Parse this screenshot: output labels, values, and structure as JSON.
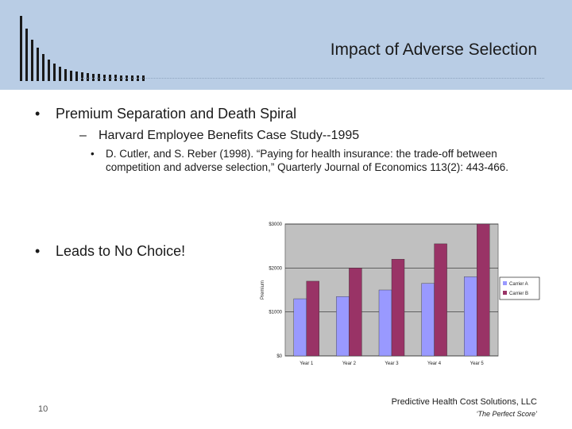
{
  "slide": {
    "title": "Impact of Adverse Selection",
    "bullet1": "Premium Separation and Death Spiral",
    "bullet1_sub": "Harvard Employee Benefits Case Study--1995",
    "citation": "D. Cutler, and S. Reber (1998). “Paying for health insurance: the trade-off between competition and adverse selection,” Quarterly Journal of Economics 113(2): 443-466.",
    "bullet2": "Leads to No Choice!",
    "page_number": "10",
    "company": "Predictive Health Cost Solutions, LLC",
    "tagline": "‘The Perfect Score’",
    "bullet_glyph": "•",
    "dash_glyph": "–"
  },
  "chart_data": {
    "type": "bar",
    "categories": [
      "Year 1",
      "Year 2",
      "Year 3",
      "Year 4",
      "Year 5"
    ],
    "series": [
      {
        "name": "Carrier A",
        "values": [
          1300,
          1350,
          1500,
          1650,
          1800
        ],
        "color": "#9999ff"
      },
      {
        "name": "Carrier B",
        "values": [
          1700,
          2000,
          2200,
          2550,
          3000
        ],
        "color": "#993366"
      }
    ],
    "ytick_labels": [
      "$0",
      "$1000",
      "$2000",
      "$3000"
    ],
    "ylabel": "Premium",
    "ylim": [
      0,
      3000
    ],
    "legend": "right",
    "grid": true
  }
}
